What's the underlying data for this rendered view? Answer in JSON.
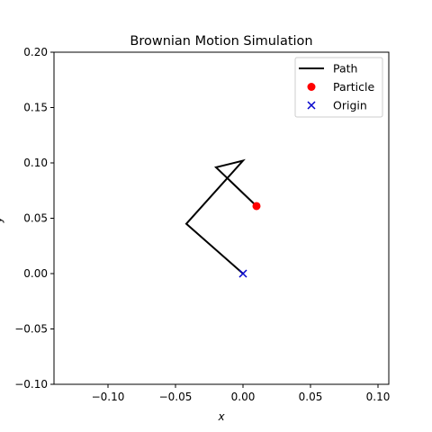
{
  "chart_data": {
    "type": "line",
    "title": "Brownian Motion Simulation",
    "xlabel": "x",
    "ylabel": "y",
    "xlim": [
      -0.14,
      0.108
    ],
    "ylim": [
      -0.1,
      0.2
    ],
    "xticks": [
      -0.1,
      -0.05,
      0.0,
      0.05,
      0.1
    ],
    "xtick_labels": [
      "−0.10",
      "−0.05",
      "0.00",
      "0.05",
      "0.10"
    ],
    "yticks": [
      -0.1,
      -0.05,
      0.0,
      0.05,
      0.1,
      0.15,
      0.2
    ],
    "ytick_labels": [
      "−0.10",
      "−0.05",
      "0.00",
      "0.05",
      "0.10",
      "0.15",
      "0.20"
    ],
    "grid": false,
    "legend_position": "top-right",
    "series": [
      {
        "name": "Path",
        "kind": "line",
        "color": "#000000",
        "points": [
          [
            0.0,
            0.0
          ],
          [
            -0.042,
            0.045
          ],
          [
            0.0,
            0.102
          ],
          [
            -0.02,
            0.096
          ],
          [
            0.01,
            0.061
          ]
        ]
      },
      {
        "name": "Particle",
        "kind": "marker-circle",
        "color": "#ff0000",
        "points": [
          [
            0.01,
            0.061
          ]
        ]
      },
      {
        "name": "Origin",
        "kind": "marker-x",
        "color": "#0000cc",
        "points": [
          [
            0.0,
            0.0
          ]
        ]
      }
    ]
  }
}
